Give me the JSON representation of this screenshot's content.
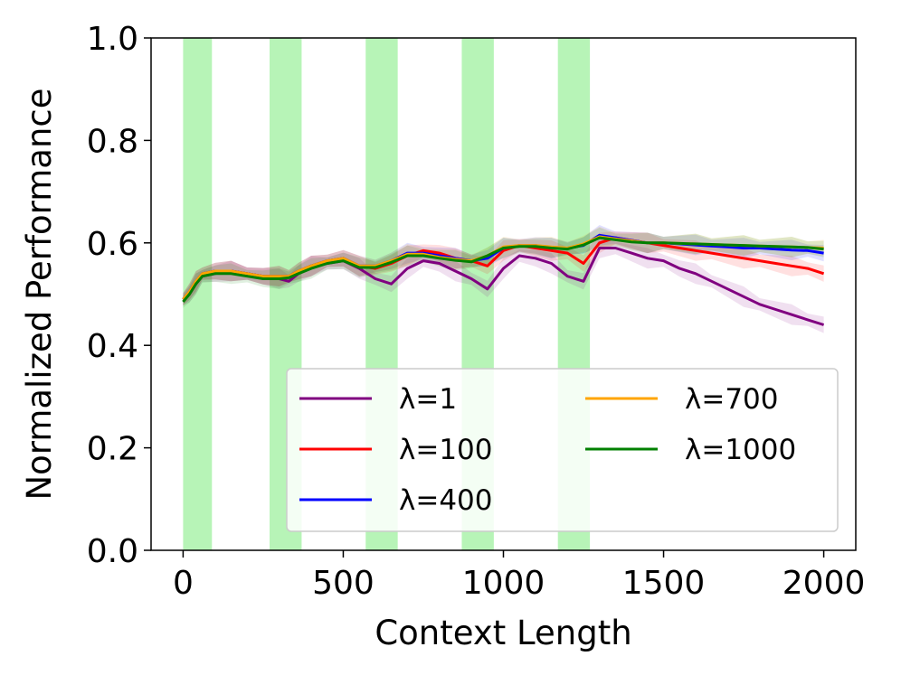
{
  "chart_data": {
    "type": "line",
    "title": "",
    "xlabel": "Context Length",
    "ylabel": "Normalized Performance",
    "xlim": [
      -100,
      2100
    ],
    "ylim": [
      0.0,
      1.0
    ],
    "xticks": [
      0,
      500,
      1000,
      1500,
      2000
    ],
    "xtick_labels": [
      "0",
      "500",
      "1000",
      "1500",
      "2000"
    ],
    "yticks": [
      0.0,
      0.2,
      0.4,
      0.6,
      0.8,
      1.0
    ],
    "ytick_labels": [
      "0.0",
      "0.2",
      "0.4",
      "0.6",
      "0.8",
      "1.0"
    ],
    "grid": false,
    "legend_position": "lower-right",
    "shaded_regions": {
      "color": "#90ee90",
      "spans": [
        [
          0,
          90
        ],
        [
          270,
          370
        ],
        [
          570,
          670
        ],
        [
          870,
          970
        ],
        [
          1170,
          1270
        ]
      ]
    },
    "series": [
      {
        "name": "λ=1",
        "color": "#800080",
        "x": [
          0,
          20,
          40,
          60,
          100,
          150,
          200,
          250,
          300,
          330,
          360,
          400,
          450,
          500,
          550,
          600,
          650,
          700,
          750,
          800,
          850,
          900,
          950,
          1000,
          1050,
          1100,
          1150,
          1200,
          1250,
          1300,
          1350,
          1400,
          1450,
          1500,
          1550,
          1600,
          1650,
          1700,
          1750,
          1800,
          1850,
          1900,
          1950,
          2000
        ],
        "y": [
          0.49,
          0.5,
          0.52,
          0.535,
          0.54,
          0.545,
          0.54,
          0.535,
          0.53,
          0.525,
          0.54,
          0.555,
          0.56,
          0.565,
          0.55,
          0.53,
          0.52,
          0.55,
          0.565,
          0.56,
          0.545,
          0.53,
          0.51,
          0.55,
          0.575,
          0.57,
          0.56,
          0.535,
          0.525,
          0.59,
          0.59,
          0.58,
          0.57,
          0.565,
          0.55,
          0.54,
          0.525,
          0.51,
          0.495,
          0.48,
          0.47,
          0.46,
          0.45,
          0.44
        ]
      },
      {
        "name": "λ=100",
        "color": "#ff0000",
        "x": [
          0,
          20,
          40,
          60,
          100,
          150,
          200,
          250,
          300,
          330,
          360,
          400,
          450,
          500,
          550,
          600,
          650,
          700,
          750,
          800,
          850,
          900,
          950,
          1000,
          1050,
          1100,
          1150,
          1200,
          1250,
          1300,
          1350,
          1400,
          1450,
          1500,
          1550,
          1600,
          1650,
          1700,
          1750,
          1800,
          1850,
          1900,
          1950,
          2000
        ],
        "y": [
          0.49,
          0.505,
          0.525,
          0.54,
          0.545,
          0.545,
          0.54,
          0.535,
          0.535,
          0.535,
          0.545,
          0.555,
          0.565,
          0.57,
          0.555,
          0.55,
          0.56,
          0.575,
          0.585,
          0.58,
          0.57,
          0.565,
          0.555,
          0.585,
          0.595,
          0.59,
          0.585,
          0.58,
          0.56,
          0.6,
          0.61,
          0.605,
          0.6,
          0.595,
          0.59,
          0.585,
          0.58,
          0.575,
          0.57,
          0.565,
          0.56,
          0.555,
          0.55,
          0.54
        ]
      },
      {
        "name": "λ=400",
        "color": "#0000ff",
        "x": [
          0,
          20,
          40,
          60,
          100,
          150,
          200,
          250,
          300,
          330,
          360,
          400,
          450,
          500,
          550,
          600,
          650,
          700,
          750,
          800,
          850,
          900,
          950,
          1000,
          1050,
          1100,
          1150,
          1200,
          1250,
          1300,
          1350,
          1400,
          1450,
          1500,
          1550,
          1600,
          1650,
          1700,
          1750,
          1800,
          1850,
          1900,
          1950,
          2000
        ],
        "y": [
          0.49,
          0.505,
          0.525,
          0.54,
          0.545,
          0.545,
          0.54,
          0.535,
          0.535,
          0.535,
          0.545,
          0.555,
          0.565,
          0.57,
          0.555,
          0.555,
          0.565,
          0.58,
          0.58,
          0.575,
          0.57,
          0.565,
          0.57,
          0.59,
          0.595,
          0.595,
          0.59,
          0.59,
          0.595,
          0.615,
          0.61,
          0.605,
          0.6,
          0.6,
          0.598,
          0.596,
          0.594,
          0.592,
          0.59,
          0.59,
          0.588,
          0.586,
          0.585,
          0.58
        ]
      },
      {
        "name": "λ=700",
        "color": "#ffa500",
        "x": [
          0,
          20,
          40,
          60,
          100,
          150,
          200,
          250,
          300,
          330,
          360,
          400,
          450,
          500,
          550,
          600,
          650,
          700,
          750,
          800,
          850,
          900,
          950,
          1000,
          1050,
          1100,
          1150,
          1200,
          1250,
          1300,
          1350,
          1400,
          1450,
          1500,
          1550,
          1600,
          1650,
          1700,
          1750,
          1800,
          1850,
          1900,
          1950,
          2000
        ],
        "y": [
          0.49,
          0.505,
          0.525,
          0.54,
          0.545,
          0.545,
          0.54,
          0.535,
          0.535,
          0.535,
          0.545,
          0.555,
          0.565,
          0.57,
          0.555,
          0.555,
          0.565,
          0.578,
          0.578,
          0.572,
          0.568,
          0.565,
          0.575,
          0.592,
          0.595,
          0.595,
          0.592,
          0.59,
          0.598,
          0.612,
          0.608,
          0.604,
          0.6,
          0.6,
          0.599,
          0.598,
          0.597,
          0.596,
          0.595,
          0.594,
          0.593,
          0.592,
          0.591,
          0.59
        ]
      },
      {
        "name": "λ=1000",
        "color": "#008000",
        "x": [
          0,
          20,
          40,
          60,
          100,
          150,
          200,
          250,
          300,
          330,
          360,
          400,
          450,
          500,
          550,
          600,
          650,
          700,
          750,
          800,
          850,
          900,
          950,
          1000,
          1050,
          1100,
          1150,
          1200,
          1250,
          1300,
          1350,
          1400,
          1450,
          1500,
          1550,
          1600,
          1650,
          1700,
          1750,
          1800,
          1850,
          1900,
          1950,
          2000
        ],
        "y": [
          0.485,
          0.5,
          0.52,
          0.535,
          0.54,
          0.54,
          0.535,
          0.53,
          0.53,
          0.532,
          0.54,
          0.55,
          0.56,
          0.565,
          0.552,
          0.552,
          0.562,
          0.575,
          0.575,
          0.57,
          0.566,
          0.563,
          0.575,
          0.59,
          0.593,
          0.593,
          0.59,
          0.588,
          0.596,
          0.61,
          0.606,
          0.602,
          0.6,
          0.6,
          0.599,
          0.598,
          0.597,
          0.596,
          0.595,
          0.594,
          0.593,
          0.592,
          0.591,
          0.588
        ]
      }
    ]
  }
}
